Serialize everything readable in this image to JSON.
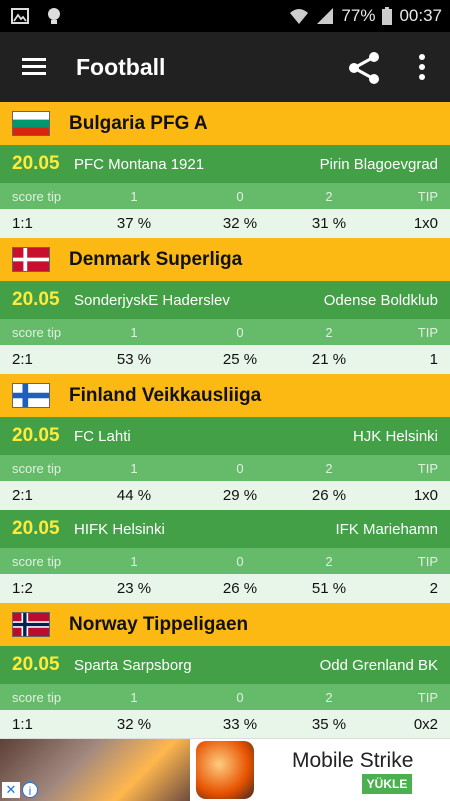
{
  "status_bar": {
    "battery": "77%",
    "time": "00:37"
  },
  "app_bar": {
    "title": "Football"
  },
  "columns": {
    "score_tip": "score tip",
    "one": "1",
    "zero": "0",
    "two": "2",
    "tip": "TIP"
  },
  "leagues": [
    {
      "name": "Bulgaria PFG A",
      "flag": "bulgaria",
      "matches": [
        {
          "date": "20.05",
          "home": "PFC Montana 1921",
          "away": "Pirin Blagoevgrad",
          "score": "1:1",
          "p1": "37 %",
          "p0": "32 %",
          "p2": "31 %",
          "tip": "1x0"
        }
      ]
    },
    {
      "name": "Denmark Superliga",
      "flag": "denmark",
      "matches": [
        {
          "date": "20.05",
          "home": "SonderjyskE Haderslev",
          "away": "Odense Boldklub",
          "score": "2:1",
          "p1": "53 %",
          "p0": "25 %",
          "p2": "21 %",
          "tip": "1"
        }
      ]
    },
    {
      "name": "Finland Veikkausliiga",
      "flag": "finland",
      "matches": [
        {
          "date": "20.05",
          "home": "FC Lahti",
          "away": "HJK Helsinki",
          "score": "2:1",
          "p1": "44 %",
          "p0": "29 %",
          "p2": "26 %",
          "tip": "1x0"
        },
        {
          "date": "20.05",
          "home": "HIFK Helsinki",
          "away": "IFK Mariehamn",
          "score": "1:2",
          "p1": "23 %",
          "p0": "26 %",
          "p2": "51 %",
          "tip": "2"
        }
      ]
    },
    {
      "name": "Norway Tippeligaen",
      "flag": "norway",
      "matches": [
        {
          "date": "20.05",
          "home": "Sparta Sarpsborg",
          "away": "Odd Grenland BK",
          "score": "1:1",
          "p1": "32 %",
          "p0": "33 %",
          "p2": "35 %",
          "tip": "0x2"
        }
      ]
    }
  ],
  "ad": {
    "title": "Mobile Strike",
    "install_label": "YÜKLE",
    "close_glyph": "✕",
    "info_glyph": "i"
  }
}
